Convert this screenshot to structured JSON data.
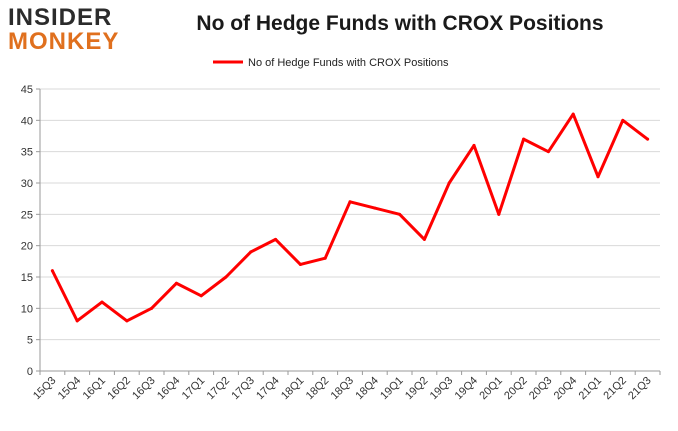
{
  "logo": {
    "line1": "INSIDER",
    "line2": "MONKEY"
  },
  "chart_data": {
    "type": "line",
    "title": "No of Hedge Funds with CROX Positions",
    "xlabel": "",
    "ylabel": "",
    "categories": [
      "15Q3",
      "15Q4",
      "16Q1",
      "16Q2",
      "16Q3",
      "16Q4",
      "17Q1",
      "17Q2",
      "17Q3",
      "17Q4",
      "18Q1",
      "18Q2",
      "18Q3",
      "18Q4",
      "19Q1",
      "19Q2",
      "19Q3",
      "19Q4",
      "20Q1",
      "20Q2",
      "20Q3",
      "20Q4",
      "21Q1",
      "21Q2",
      "21Q3"
    ],
    "series": [
      {
        "name": "No of Hedge Funds with CROX Positions",
        "color": "#ff0000",
        "values": [
          16,
          8,
          11,
          8,
          10,
          14,
          12,
          15,
          19,
          21,
          17,
          18,
          27,
          26,
          25,
          21,
          30,
          36,
          25,
          37,
          35,
          41,
          31,
          40,
          37
        ]
      }
    ],
    "ylim": [
      0,
      45
    ],
    "yticks": [
      0,
      5,
      10,
      15,
      20,
      25,
      30,
      35,
      40,
      45
    ],
    "grid": true,
    "legend": "top-center"
  }
}
